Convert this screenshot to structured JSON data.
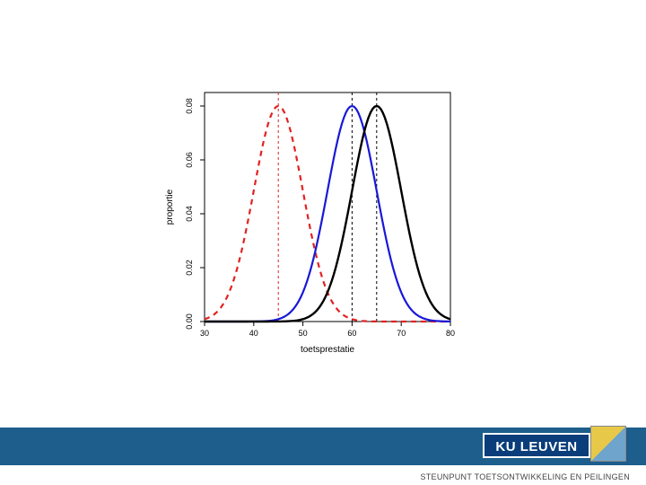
{
  "chart": {
    "type": "line",
    "xlabel": "toetsprestatie",
    "ylabel": "proportie",
    "xlim": [
      30,
      80
    ],
    "ylim": [
      0.0,
      0.085
    ],
    "xticks": [
      30,
      40,
      50,
      60,
      70,
      80
    ],
    "yticks": [
      0.0,
      0.02,
      0.04,
      0.06,
      0.08
    ],
    "xtick_labels": [
      "30",
      "40",
      "50",
      "60",
      "70",
      "80"
    ],
    "ytick_labels": [
      "0.00",
      "0.02",
      "0.04",
      "0.06",
      "0.08"
    ],
    "plot_bg": "#ffffff",
    "axis_color": "#000000",
    "label_fontsize": 10,
    "tick_fontsize": 9,
    "series": [
      {
        "name": "red-curve",
        "color": "#e22222",
        "stroke_width": 2.2,
        "dash": "6,5",
        "mean": 45,
        "sd": 5,
        "peak": 0.08
      },
      {
        "name": "blue-curve",
        "color": "#1818d8",
        "stroke_width": 2.2,
        "dash": "none",
        "mean": 60,
        "sd": 5,
        "peak": 0.08
      },
      {
        "name": "black-curve",
        "color": "#000000",
        "stroke_width": 2.4,
        "dash": "none",
        "mean": 65,
        "sd": 5,
        "peak": 0.08
      }
    ],
    "vlines": [
      {
        "x": 45,
        "color": "#e22222",
        "dash": "3,3",
        "stroke_width": 1
      },
      {
        "x": 60,
        "color": "#000000",
        "dash": "3,3",
        "stroke_width": 1
      },
      {
        "x": 65,
        "color": "#000000",
        "dash": "3,3",
        "stroke_width": 1
      }
    ]
  },
  "footer": {
    "band_color": "#1d5e8c",
    "logo_text": "KU LEUVEN",
    "logo_bg": "#0a3d7a",
    "logo_text_color": "#ffffff",
    "caption": "STEUNPUNT TOETSONTWIKKELING EN PEILINGEN"
  }
}
